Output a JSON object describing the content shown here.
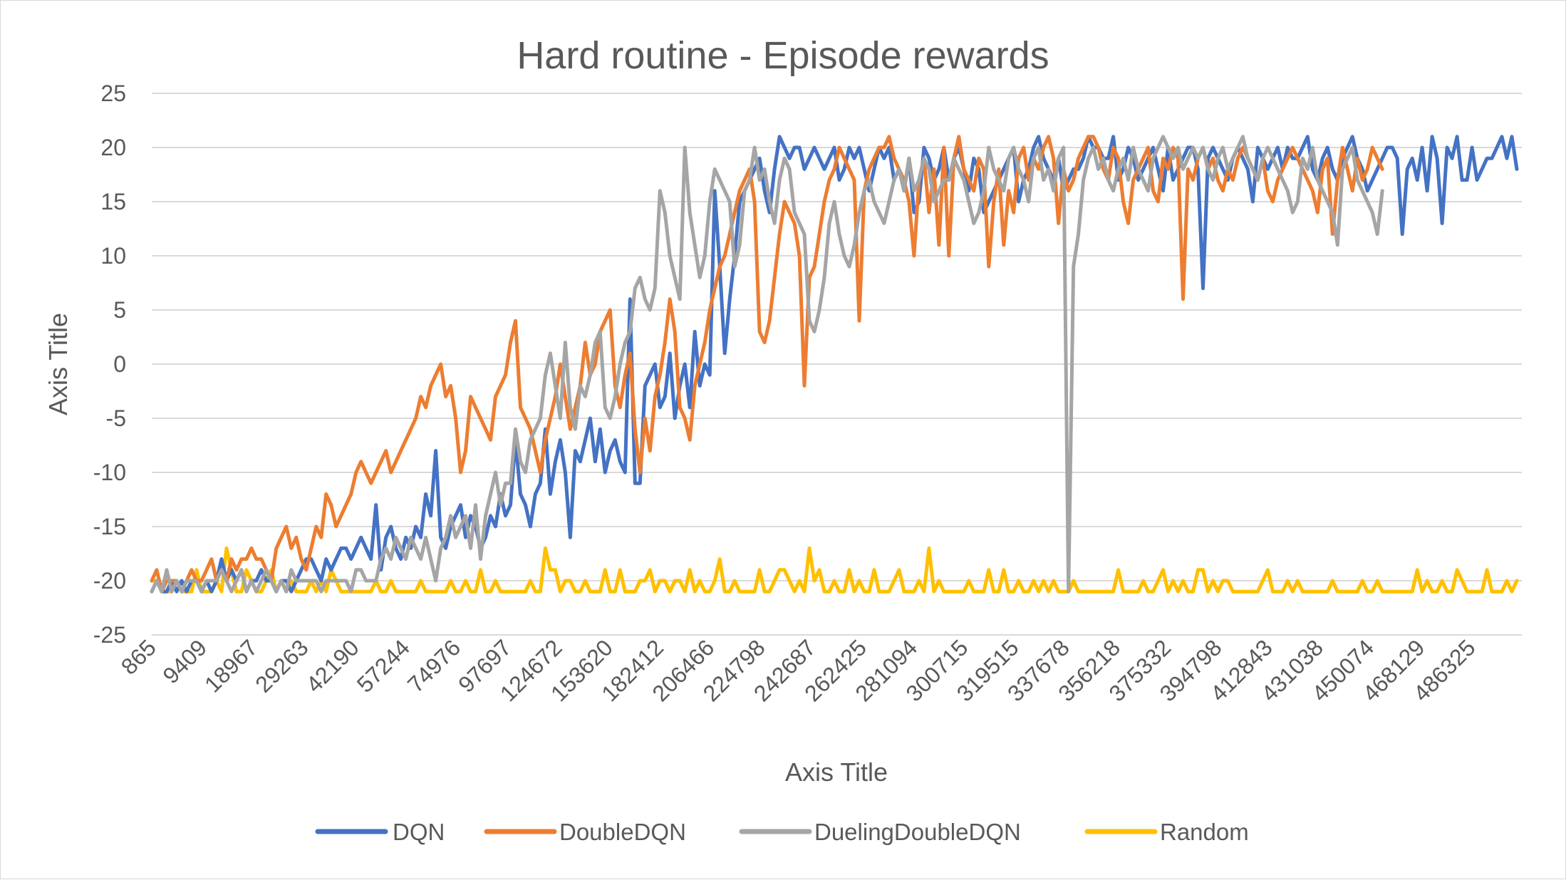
{
  "chart_data": {
    "type": "line",
    "title": "Hard routine - Episode rewards",
    "xlabel": "Axis Title",
    "ylabel": "Axis Title",
    "ylim": [
      -25,
      25
    ],
    "yticks": [
      25,
      20,
      15,
      10,
      5,
      0,
      -5,
      -10,
      -15,
      -20,
      -25
    ],
    "xtick_labels": [
      "865",
      "9409",
      "18967",
      "29263",
      "42190",
      "57244",
      "74976",
      "97697",
      "124672",
      "153620",
      "182412",
      "206466",
      "224798",
      "242687",
      "262425",
      "281094",
      "300715",
      "319515",
      "337678",
      "356218",
      "375332",
      "394798",
      "412843",
      "431038",
      "450074",
      "468129",
      "486325"
    ],
    "legend_position": "bottom",
    "grid": true,
    "series": [
      {
        "name": "DQN",
        "color": "#4472c4",
        "values": [
          -21,
          -20,
          -21,
          -21,
          -20,
          -21,
          -20,
          -21,
          -20,
          -20,
          -21,
          -20,
          -21,
          -20,
          -18,
          -20,
          -19,
          -20,
          -19,
          -21,
          -20,
          -20,
          -19,
          -20,
          -20,
          -21,
          -20,
          -20,
          -21,
          -20,
          -19,
          -18,
          -18,
          -19,
          -20,
          -18,
          -19,
          -18,
          -17,
          -17,
          -18,
          -17,
          -16,
          -17,
          -18,
          -13,
          -19,
          -16,
          -15,
          -17,
          -18,
          -16,
          -17,
          -15,
          -16,
          -12,
          -14,
          -8,
          -16,
          -17,
          -15,
          -14,
          -13,
          -16,
          -14,
          -15,
          -17,
          -16,
          -14,
          -15,
          -12,
          -14,
          -13,
          -7,
          -12,
          -13,
          -15,
          -12,
          -11,
          -6,
          -12,
          -9,
          -7,
          -10,
          -16,
          -8,
          -9,
          -7,
          -5,
          -9,
          -6,
          -10,
          -8,
          -7,
          -9,
          -10,
          6,
          -11,
          -11,
          -2,
          -1,
          0,
          -4,
          -3,
          1,
          -5,
          -2,
          0,
          -4,
          3,
          -2,
          0,
          -1,
          16,
          9,
          1,
          6,
          10,
          15,
          16,
          17,
          18,
          19,
          16,
          14,
          18,
          21,
          20,
          19,
          20,
          20,
          18,
          19,
          20,
          19,
          18,
          19,
          20,
          17,
          18,
          20,
          19,
          20,
          18,
          16,
          18,
          20,
          19,
          20,
          17,
          18,
          16,
          19,
          14,
          15,
          20,
          19,
          17,
          18,
          20,
          17,
          19,
          20,
          18,
          16,
          19,
          18,
          14,
          15,
          16,
          17,
          18,
          19,
          20,
          15,
          17,
          18,
          20,
          21,
          19,
          18,
          17,
          19,
          16,
          17,
          18,
          18,
          19,
          21,
          20,
          20,
          19,
          19,
          21,
          17,
          18,
          20,
          19,
          17,
          18,
          19,
          20,
          18,
          16,
          20,
          17,
          18,
          19,
          20,
          20,
          18,
          7,
          19,
          20,
          19,
          18,
          17,
          19,
          20,
          19,
          18,
          15,
          20,
          19,
          18,
          19,
          20,
          18,
          20,
          19,
          19,
          20,
          21,
          18,
          17,
          19,
          20,
          18,
          17,
          19,
          20,
          21,
          19,
          18,
          16,
          17,
          18,
          19,
          20,
          20,
          19,
          12,
          18,
          19,
          17,
          20,
          16,
          21,
          19,
          13,
          20,
          19,
          21,
          17,
          17,
          20,
          17,
          18,
          19,
          19,
          20,
          21,
          19,
          21,
          18,
          20
        ],
        "display_count": 275
      },
      {
        "name": "DoubleDQN",
        "color": "#ed7d31",
        "values": [
          -20,
          -19,
          -21,
          -20,
          -20,
          -20,
          -21,
          -20,
          -19,
          -20,
          -20,
          -19,
          -18,
          -20,
          -19,
          -20,
          -18,
          -19,
          -18,
          -18,
          -17,
          -18,
          -18,
          -19,
          -20,
          -17,
          -16,
          -15,
          -17,
          -16,
          -18,
          -19,
          -17,
          -15,
          -16,
          -12,
          -13,
          -15,
          -14,
          -13,
          -12,
          -10,
          -9,
          -10,
          -11,
          -10,
          -9,
          -8,
          -10,
          -9,
          -8,
          -7,
          -6,
          -5,
          -3,
          -4,
          -2,
          -1,
          0,
          -3,
          -2,
          -5,
          -10,
          -8,
          -3,
          -4,
          -5,
          -6,
          -7,
          -3,
          -2,
          -1,
          2,
          4,
          -4,
          -5,
          -6,
          -8,
          -10,
          -7,
          -5,
          -3,
          0,
          -3,
          -6,
          -4,
          -2,
          2,
          -1,
          0,
          3,
          4,
          5,
          -2,
          -4,
          -1,
          1,
          -6,
          -10,
          -5,
          -8,
          -3,
          -1,
          2,
          6,
          3,
          -4,
          -5,
          -7,
          -2,
          0,
          2,
          5,
          7,
          9,
          10,
          12,
          14,
          16,
          17,
          18,
          15,
          3,
          2,
          4,
          8,
          12,
          15,
          14,
          13,
          10,
          -2,
          8,
          9,
          12,
          15,
          17,
          18,
          20,
          19,
          18,
          17,
          4,
          16,
          18,
          19,
          20,
          20,
          21,
          19,
          18,
          17,
          15,
          10,
          17,
          19,
          14,
          18,
          11,
          20,
          10,
          19,
          21,
          18,
          17,
          16,
          19,
          18,
          9,
          15,
          18,
          11,
          16,
          14,
          19,
          20,
          17,
          19,
          18,
          20,
          21,
          19,
          13,
          18,
          16,
          17,
          19,
          20,
          21,
          21,
          20,
          18,
          17,
          20,
          19,
          15,
          13,
          17,
          18,
          19,
          20,
          16,
          15,
          19,
          18,
          20,
          19,
          6,
          18,
          17,
          19,
          20,
          18,
          19,
          17,
          16,
          18,
          17,
          19,
          20,
          19,
          18,
          17,
          19,
          16,
          15,
          17,
          18,
          19,
          20,
          19,
          18,
          17,
          16,
          14,
          18,
          19,
          12,
          17,
          20,
          18,
          16,
          19,
          17,
          18,
          20,
          19,
          18,
          17,
          19,
          20,
          16,
          17,
          18,
          19,
          15,
          16,
          18,
          19,
          20,
          18,
          16,
          17,
          19
        ],
        "display_count": 248
      },
      {
        "name": "DuelingDoubleDQN",
        "color": "#a5a5a5",
        "values": [
          -21,
          -20,
          -21,
          -19,
          -21,
          -20,
          -21,
          -20,
          -20,
          -20,
          -21,
          -20,
          -20,
          -20,
          -19,
          -20,
          -21,
          -20,
          -19,
          -21,
          -20,
          -21,
          -20,
          -19,
          -20,
          -21,
          -20,
          -21,
          -19,
          -20,
          -20,
          -20,
          -20,
          -20,
          -21,
          -20,
          -20,
          -20,
          -20,
          -20,
          -21,
          -19,
          -19,
          -20,
          -20,
          -20,
          -18,
          -17,
          -18,
          -16,
          -17,
          -18,
          -16,
          -17,
          -18,
          -16,
          -18,
          -20,
          -17,
          -16,
          -14,
          -16,
          -15,
          -14,
          -17,
          -13,
          -18,
          -14,
          -12,
          -10,
          -13,
          -11,
          -11,
          -6,
          -9,
          -10,
          -7,
          -6,
          -5,
          -1,
          1,
          -2,
          -5,
          2,
          -4,
          -6,
          -2,
          -3,
          -1,
          2,
          3,
          -4,
          -5,
          -3,
          0,
          2,
          3,
          7,
          8,
          6,
          5,
          7,
          16,
          14,
          10,
          8,
          6,
          20,
          14,
          11,
          8,
          10,
          15,
          18,
          17,
          16,
          15,
          9,
          11,
          16,
          17,
          20,
          17,
          18,
          15,
          13,
          17,
          19,
          18,
          14,
          13,
          12,
          4,
          3,
          5,
          8,
          13,
          15,
          12,
          10,
          9,
          11,
          14,
          16,
          17,
          15,
          14,
          13,
          15,
          17,
          18,
          16,
          19,
          16,
          17,
          19,
          18,
          15,
          16,
          17,
          17,
          19,
          18,
          17,
          15,
          13,
          14,
          16,
          20,
          18,
          17,
          16,
          19,
          20,
          18,
          17,
          15,
          19,
          20,
          17,
          18,
          16,
          19,
          20,
          -21,
          9,
          12,
          17,
          19,
          20,
          18,
          19,
          17,
          16,
          18,
          19,
          17,
          20,
          18,
          17,
          16,
          19,
          20,
          21,
          20,
          19,
          20,
          18,
          19,
          20,
          19,
          20,
          18,
          17,
          19,
          20,
          18,
          19,
          20,
          21,
          19,
          18,
          17,
          19,
          20,
          19,
          18,
          17,
          16,
          14,
          15,
          19,
          18,
          20,
          17,
          16,
          15,
          14,
          11,
          18,
          19,
          20,
          17,
          16,
          15,
          14,
          12,
          16,
          18,
          19,
          20,
          21,
          20,
          19,
          18,
          16,
          17,
          19,
          20,
          18,
          17,
          19,
          20,
          21,
          19,
          18,
          17,
          16,
          19,
          20,
          19,
          18,
          20
        ],
        "display_count": 248
      },
      {
        "name": "Random",
        "color": "#ffc000",
        "values": [
          -20,
          -20,
          -21,
          -21,
          -21,
          -20,
          -21,
          -21,
          -21,
          -19,
          -21,
          -21,
          -21,
          -20,
          -21,
          -17,
          -19,
          -21,
          -21,
          -19,
          -20,
          -21,
          -21,
          -20,
          -19,
          -21,
          -20,
          -21,
          -20,
          -21,
          -21,
          -21,
          -20,
          -21,
          -20,
          -21,
          -19,
          -20,
          -21,
          -21,
          -21,
          -21,
          -21,
          -21,
          -21,
          -20,
          -21,
          -21,
          -20,
          -21,
          -21,
          -21,
          -21,
          -21,
          -20,
          -21,
          -21,
          -21,
          -21,
          -21,
          -20,
          -21,
          -21,
          -20,
          -21,
          -21,
          -19,
          -21,
          -21,
          -20,
          -21,
          -21,
          -21,
          -21,
          -21,
          -21,
          -20,
          -21,
          -21,
          -17,
          -19,
          -19,
          -21,
          -20,
          -20,
          -21,
          -21,
          -20,
          -21,
          -21,
          -21,
          -19,
          -21,
          -21,
          -19,
          -21,
          -21,
          -21,
          -20,
          -20,
          -19,
          -21,
          -20,
          -20,
          -21,
          -20,
          -20,
          -21,
          -19,
          -21,
          -20,
          -21,
          -21,
          -20,
          -18,
          -21,
          -21,
          -20,
          -21,
          -21,
          -21,
          -21,
          -19,
          -21,
          -21,
          -20,
          -19,
          -19,
          -20,
          -21,
          -20,
          -21,
          -17,
          -20,
          -19,
          -21,
          -21,
          -20,
          -21,
          -21,
          -19,
          -21,
          -20,
          -21,
          -21,
          -19,
          -21,
          -21,
          -21,
          -20,
          -19,
          -21,
          -21,
          -21,
          -20,
          -21,
          -17,
          -21,
          -20,
          -21,
          -21,
          -21,
          -21,
          -21,
          -20,
          -21,
          -21,
          -21,
          -19,
          -21,
          -21,
          -19,
          -21,
          -21,
          -20,
          -21,
          -21,
          -20,
          -21,
          -20,
          -21,
          -20,
          -21,
          -21,
          -21,
          -20,
          -21,
          -21,
          -21,
          -21,
          -21,
          -21,
          -21,
          -21,
          -19,
          -21,
          -21,
          -21,
          -21,
          -20,
          -21,
          -21,
          -20,
          -19,
          -21,
          -20,
          -21,
          -20,
          -21,
          -21,
          -19,
          -19,
          -21,
          -20,
          -21,
          -20,
          -20,
          -21,
          -21,
          -21,
          -21,
          -21,
          -21,
          -20,
          -19,
          -21,
          -21,
          -21,
          -20,
          -21,
          -20,
          -21,
          -21,
          -21,
          -21,
          -21,
          -21,
          -20,
          -21,
          -21,
          -21,
          -21,
          -21,
          -20,
          -21,
          -21,
          -20,
          -21,
          -21,
          -21,
          -21,
          -21,
          -21,
          -21,
          -19,
          -21,
          -20,
          -21,
          -21,
          -20,
          -21,
          -21,
          -19,
          -20,
          -21,
          -21,
          -21,
          -21,
          -19,
          -21,
          -21,
          -21,
          -20,
          -21
        ],
        "display_count": 275
      }
    ]
  }
}
